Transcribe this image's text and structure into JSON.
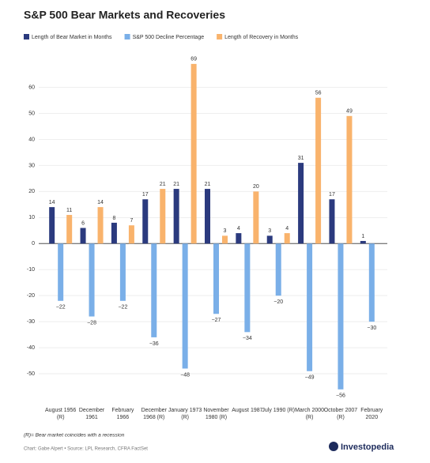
{
  "chart_data": {
    "type": "bar",
    "title": "S&P 500 Bear Markets and Recoveries",
    "categories": [
      "August 1956 (R)",
      "December 1961",
      "February 1966",
      "December 1968 (R)",
      "January 1973 (R)",
      "November 1980 (R)",
      "August 1987",
      "July 1990 (R)",
      "March 2000 (R)",
      "October 2007 (R)",
      "February 2020"
    ],
    "series": [
      {
        "name": "Length of Bear Market in Months",
        "color": "#2b3a7e",
        "values": [
          14,
          6,
          8,
          17,
          21,
          21,
          4,
          3,
          31,
          17,
          1
        ]
      },
      {
        "name": "S&P 500 Decline Percentage",
        "color": "#7aafe8",
        "values": [
          -22,
          -28,
          -22,
          -36,
          -48,
          -27,
          -34,
          -20,
          -49,
          -56,
          -30
        ],
        "value_labels": [
          "−22",
          "−28",
          "−22",
          "−36",
          "−48",
          "−27",
          "−34",
          "−20",
          "−49",
          "−56",
          "−30"
        ]
      },
      {
        "name": "Length of Recovery in Months",
        "color": "#f9b36c",
        "values": [
          11,
          14,
          7,
          21,
          69,
          3,
          20,
          4,
          56,
          49,
          null
        ]
      }
    ],
    "ylim": [
      -60,
      72
    ],
    "yticks": [
      -50,
      -40,
      -30,
      -20,
      -10,
      0,
      10,
      20,
      30,
      40,
      50,
      60
    ],
    "grid": true,
    "footnote": "(R)= Bear market coincides with a recession",
    "source": "Chart: Gabe Alpert • Source: LPL Research, CFRA FactSet",
    "brand": "Investopedia"
  }
}
